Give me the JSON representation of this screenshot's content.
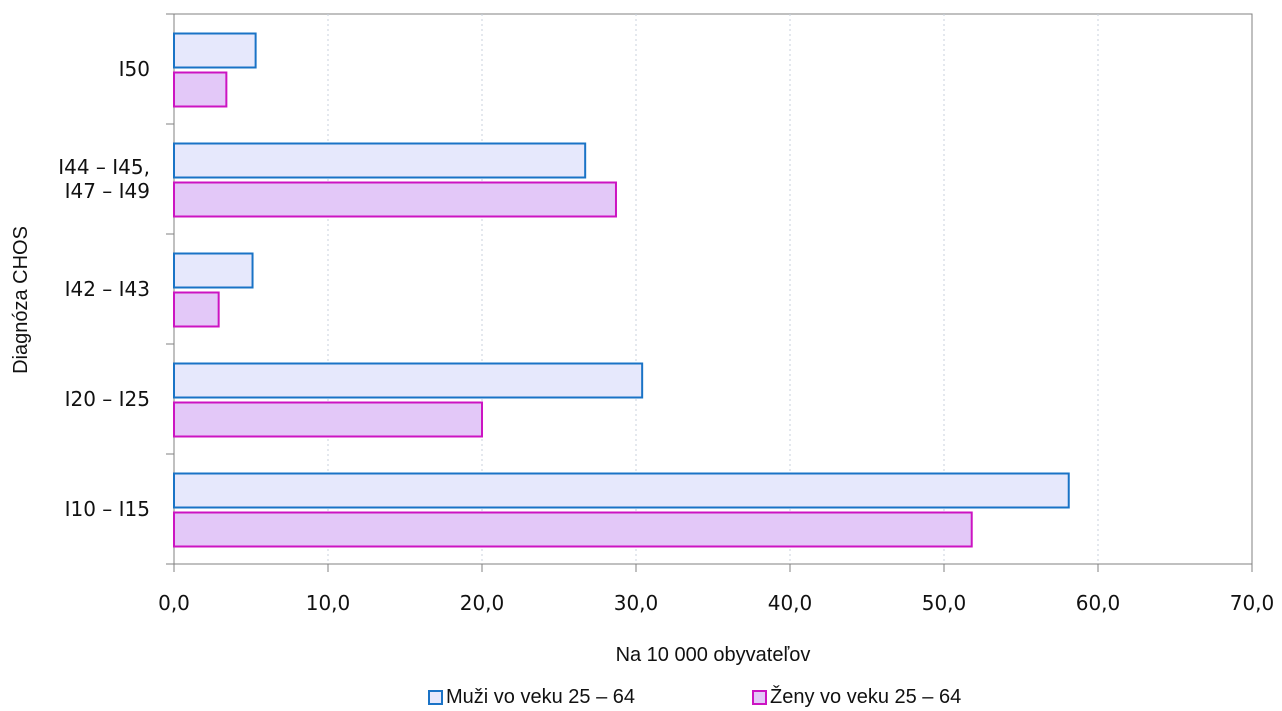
{
  "chart_data": {
    "type": "bar",
    "orientation": "horizontal",
    "categories": [
      "I50",
      "I44 – I45,\nI47 – I49",
      "I42 – I43",
      "I20 – I25",
      "I10 – I15"
    ],
    "series": [
      {
        "name": "Muži vo veku 25 – 64",
        "values": [
          5.3,
          26.7,
          5.1,
          30.4,
          58.1
        ],
        "stroke": "#1a73c6",
        "fill": "#e6e8fc"
      },
      {
        "name": "Ženy vo veku 25 – 64",
        "values": [
          3.4,
          28.7,
          2.9,
          20.0,
          51.8
        ],
        "stroke": "#cc14c2",
        "fill": "#e3c8f8"
      }
    ],
    "xlabel": "Na 10 000 obyvateľov",
    "ylabel": "Diagnóza CHOS",
    "xlim": [
      0,
      70
    ],
    "xticks": [
      "0,0",
      "10,0",
      "20,0",
      "30,0",
      "40,0",
      "50,0",
      "60,0",
      "70,0"
    ],
    "grid": "vertical dashed",
    "legend_position": "bottom"
  }
}
